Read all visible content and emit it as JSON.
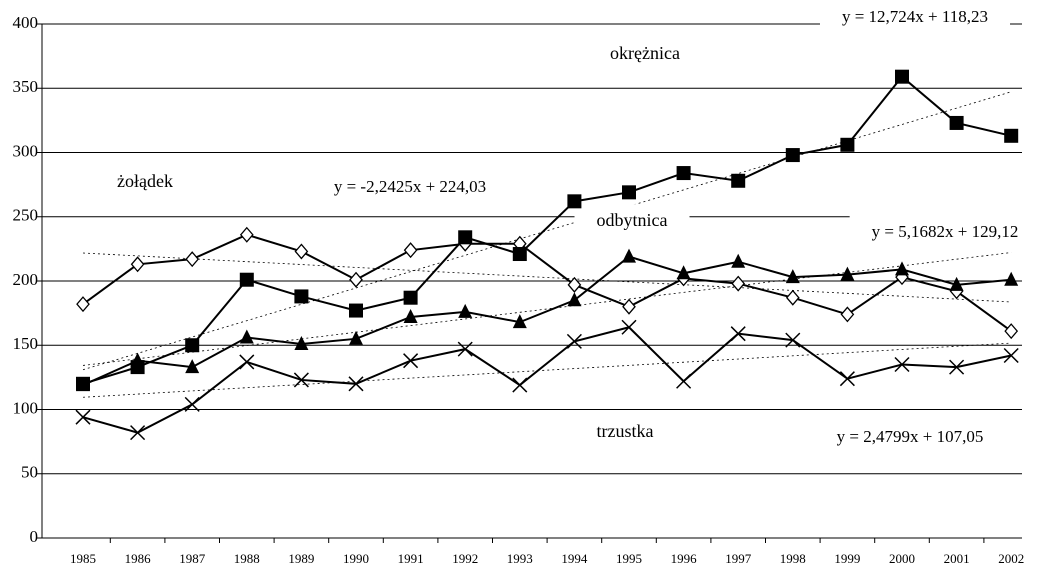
{
  "chart_data": {
    "type": "line",
    "categories": [
      "1985",
      "1986",
      "1987",
      "1988",
      "1989",
      "1990",
      "1991",
      "1992",
      "1993",
      "1994",
      "1995",
      "1996",
      "1997",
      "1998",
      "1999",
      "2000",
      "2001",
      "2002"
    ],
    "series": [
      {
        "name": "żołądek",
        "marker": "diamond",
        "color": "#000000",
        "values": [
          182,
          213,
          217,
          236,
          223,
          201,
          224,
          229,
          229,
          197,
          180,
          202,
          198,
          187,
          174,
          203,
          192,
          161
        ]
      },
      {
        "name": "okrężnica",
        "marker": "square",
        "color": "#000000",
        "values": [
          120,
          133,
          150,
          201,
          188,
          177,
          187,
          234,
          221,
          262,
          269,
          284,
          278,
          298,
          306,
          359,
          323,
          313
        ]
      },
      {
        "name": "odbytnica",
        "marker": "triangle",
        "color": "#000000",
        "values": [
          119,
          138,
          133,
          156,
          151,
          155,
          172,
          176,
          168,
          185,
          219,
          206,
          215,
          203,
          205,
          209,
          197,
          201
        ]
      },
      {
        "name": "trzustka",
        "marker": "x",
        "color": "#000000",
        "values": [
          94,
          82,
          104,
          137,
          123,
          120,
          138,
          147,
          119,
          153,
          164,
          122,
          159,
          154,
          124,
          135,
          133,
          142
        ]
      }
    ],
    "trendlines": [
      {
        "slope": -2.2425,
        "intercept": 224.03,
        "label": "y = -2,2425x + 224,03"
      },
      {
        "slope": 12.724,
        "intercept": 118.23,
        "label": "y = 12,724x + 118,23"
      },
      {
        "slope": 5.1682,
        "intercept": 129.12,
        "label": "y = 5,1682x + 129,12"
      },
      {
        "slope": 2.4799,
        "intercept": 107.05,
        "label": "y = 2,4799x + 107,05"
      }
    ],
    "ylim": [
      0,
      400
    ],
    "yticks": [
      0,
      50,
      100,
      150,
      200,
      250,
      300,
      350,
      400
    ],
    "grid": true
  }
}
